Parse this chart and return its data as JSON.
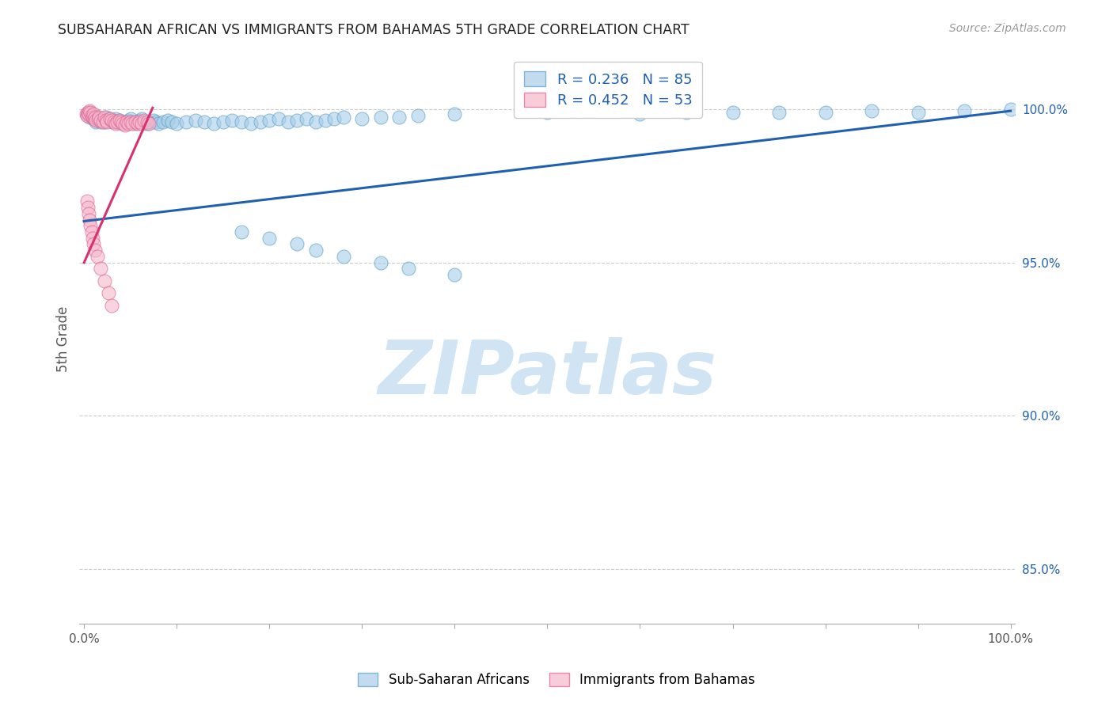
{
  "title": "SUBSAHARAN AFRICAN VS IMMIGRANTS FROM BAHAMAS 5TH GRADE CORRELATION CHART",
  "source": "Source: ZipAtlas.com",
  "ylabel": "5th Grade",
  "yticks": [
    0.85,
    0.9,
    0.95,
    1.0
  ],
  "ytick_labels": [
    "85.0%",
    "90.0%",
    "95.0%",
    "100.0%"
  ],
  "legend_blue": "Sub-Saharan Africans",
  "legend_pink": "Immigrants from Bahamas",
  "R_blue": "0.236",
  "N_blue": 85,
  "R_pink": "0.452",
  "N_pink": 53,
  "blue_color": "#a8cde8",
  "blue_edge_color": "#5a9ec9",
  "pink_color": "#f4b8cb",
  "pink_edge_color": "#e06090",
  "blue_line_color": "#2060b0",
  "pink_line_color": "#d83070",
  "watermark_text": "ZIPatlas",
  "watermark_color": "#d0e4f4",
  "blue_scatter_x": [
    0.003,
    0.005,
    0.006,
    0.007,
    0.008,
    0.009,
    0.01,
    0.011,
    0.012,
    0.013,
    0.015,
    0.016,
    0.018,
    0.02,
    0.021,
    0.022,
    0.024,
    0.025,
    0.027,
    0.03,
    0.032,
    0.034,
    0.036,
    0.038,
    0.04,
    0.042,
    0.045,
    0.048,
    0.05,
    0.052,
    0.055,
    0.058,
    0.06,
    0.062,
    0.065,
    0.068,
    0.07,
    0.075,
    0.078,
    0.08,
    0.085,
    0.09,
    0.095,
    0.1,
    0.11,
    0.12,
    0.13,
    0.14,
    0.15,
    0.16,
    0.17,
    0.18,
    0.19,
    0.2,
    0.21,
    0.22,
    0.23,
    0.24,
    0.25,
    0.26,
    0.27,
    0.28,
    0.3,
    0.32,
    0.34,
    0.36,
    0.4,
    0.5,
    0.6,
    0.65,
    0.7,
    0.75,
    0.8,
    0.85,
    0.9,
    0.95,
    1.0,
    0.17,
    0.2,
    0.23,
    0.25,
    0.28,
    0.32,
    0.35,
    0.4
  ],
  "blue_scatter_y": [
    0.9985,
    0.999,
    0.9975,
    0.998,
    0.9985,
    0.9975,
    0.997,
    0.9975,
    0.998,
    0.996,
    0.9965,
    0.997,
    0.996,
    0.9965,
    0.997,
    0.996,
    0.9975,
    0.9965,
    0.997,
    0.996,
    0.9965,
    0.997,
    0.996,
    0.9965,
    0.996,
    0.9955,
    0.996,
    0.9965,
    0.997,
    0.996,
    0.9955,
    0.996,
    0.9965,
    0.997,
    0.996,
    0.9955,
    0.996,
    0.9965,
    0.996,
    0.9955,
    0.996,
    0.9965,
    0.996,
    0.9955,
    0.996,
    0.9965,
    0.996,
    0.9955,
    0.996,
    0.9965,
    0.996,
    0.9955,
    0.996,
    0.9965,
    0.997,
    0.996,
    0.9965,
    0.997,
    0.996,
    0.9965,
    0.997,
    0.9975,
    0.997,
    0.9975,
    0.9975,
    0.998,
    0.9985,
    0.999,
    0.9985,
    0.999,
    0.999,
    0.999,
    0.999,
    0.9995,
    0.999,
    0.9995,
    1.0,
    0.96,
    0.958,
    0.956,
    0.954,
    0.952,
    0.95,
    0.948,
    0.946
  ],
  "pink_scatter_x": [
    0.002,
    0.003,
    0.004,
    0.005,
    0.006,
    0.007,
    0.008,
    0.009,
    0.01,
    0.011,
    0.012,
    0.013,
    0.015,
    0.016,
    0.018,
    0.02,
    0.022,
    0.024,
    0.025,
    0.028,
    0.03,
    0.032,
    0.034,
    0.036,
    0.038,
    0.04,
    0.042,
    0.044,
    0.046,
    0.048,
    0.05,
    0.052,
    0.055,
    0.058,
    0.06,
    0.062,
    0.065,
    0.068,
    0.07,
    0.003,
    0.004,
    0.005,
    0.006,
    0.007,
    0.008,
    0.009,
    0.01,
    0.012,
    0.014,
    0.018,
    0.022,
    0.026,
    0.03
  ],
  "pink_scatter_y": [
    0.9985,
    0.998,
    0.999,
    0.9985,
    0.9995,
    0.999,
    0.998,
    0.9975,
    0.9985,
    0.997,
    0.9975,
    0.9965,
    0.997,
    0.9975,
    0.9965,
    0.996,
    0.9975,
    0.9965,
    0.996,
    0.997,
    0.9965,
    0.996,
    0.9955,
    0.996,
    0.9965,
    0.996,
    0.9955,
    0.995,
    0.996,
    0.9955,
    0.996,
    0.9955,
    0.996,
    0.9955,
    0.996,
    0.9955,
    0.9965,
    0.996,
    0.9955,
    0.97,
    0.968,
    0.966,
    0.964,
    0.962,
    0.96,
    0.958,
    0.956,
    0.954,
    0.952,
    0.948,
    0.944,
    0.94,
    0.936
  ],
  "blue_line_x0": 0.0,
  "blue_line_x1": 1.0,
  "blue_line_y0": 0.9635,
  "blue_line_y1": 0.9995,
  "pink_line_x0": 0.0,
  "pink_line_x1": 0.074,
  "pink_line_y0": 0.95,
  "pink_line_y1": 1.0005,
  "xmin": -0.005,
  "xmax": 1.005,
  "ymin": 0.832,
  "ymax": 1.018,
  "xtick_positions": [
    0.0,
    0.1,
    0.2,
    0.3,
    0.4,
    0.5,
    0.6,
    0.7,
    0.8,
    0.9,
    1.0
  ],
  "xtick_labels": [
    "0.0%",
    "",
    "",
    "",
    "",
    "",
    "",
    "",
    "",
    "",
    "100.0%"
  ]
}
